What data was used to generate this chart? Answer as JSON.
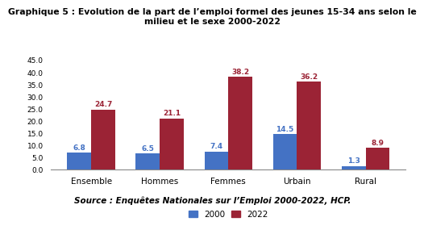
{
  "title_line1": "Graphique 5 : Evolution de la part de l’emploi formel des jeunes 15-34 ans selon le",
  "title_line2": "milieu et le sexe 2000-2022",
  "categories": [
    "Ensemble",
    "Hommes",
    "Femmes",
    "Urbain",
    "Rural"
  ],
  "values_2000": [
    6.8,
    6.5,
    7.4,
    14.5,
    1.3
  ],
  "values_2022": [
    24.7,
    21.1,
    38.2,
    36.2,
    8.9
  ],
  "color_2000": "#4472C4",
  "color_2022": "#9B2335",
  "ylim": [
    0,
    45
  ],
  "yticks": [
    0.0,
    5.0,
    10.0,
    15.0,
    20.0,
    25.0,
    30.0,
    35.0,
    40.0,
    45.0
  ],
  "legend_2000": "2000",
  "legend_2022": "2022",
  "source": "Source : Enquêtes Nationales sur l’Emploi 2000-2022, HCP.",
  "bar_width": 0.35,
  "background_color": "#ffffff"
}
